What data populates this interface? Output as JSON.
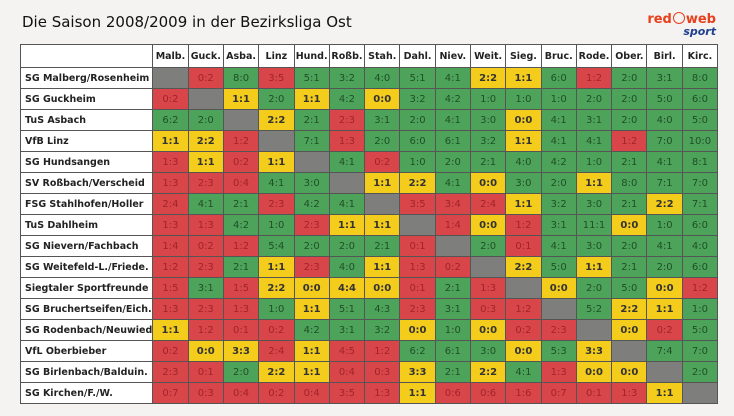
{
  "title": "Die Saison 2008/2009 in der Bezirksliga Ost",
  "logo": {
    "text_top": "red web",
    "text_bottom": "sport"
  },
  "colors": {
    "win": "#4ea35b",
    "draw": "#f4cc1c",
    "loss": "#d9464a",
    "self": "#7e7e7c"
  },
  "columns": [
    "Malb.",
    "Guck.",
    "Asba.",
    "Linz",
    "Hund.",
    "Roßb.",
    "Stah.",
    "Dahl.",
    "Niev.",
    "Weit.",
    "Sieg.",
    "Bruc.",
    "Rode.",
    "Ober.",
    "Birl.",
    "Kirc."
  ],
  "rows": [
    {
      "team": "SG Malberg/Rosenheim",
      "scores": [
        null,
        "0:2",
        "8:0",
        "3:5",
        "5:1",
        "3:2",
        "4:0",
        "5:1",
        "4:1",
        "2:2",
        "1:1",
        "6:0",
        "1:2",
        "2:0",
        "3:1",
        "8:0"
      ]
    },
    {
      "team": "SG Guckheim",
      "scores": [
        "0:2",
        null,
        "1:1",
        "2:0",
        "1:1",
        "4:2",
        "0:0",
        "3:2",
        "4:2",
        "1:0",
        "1:0",
        "1:0",
        "2:0",
        "2:0",
        "5:0",
        "6:0"
      ]
    },
    {
      "team": "TuS Asbach",
      "scores": [
        "6:2",
        "2:0",
        null,
        "2:2",
        "2:1",
        "2:3",
        "3:1",
        "2:0",
        "4:1",
        "3:0",
        "0:0",
        "4:1",
        "3:1",
        "2:0",
        "4:0",
        "5:0"
      ]
    },
    {
      "team": "VfB Linz",
      "scores": [
        "1:1",
        "2:2",
        "1:2",
        null,
        "7:1",
        "1:3",
        "2:0",
        "6:0",
        "6:1",
        "3:2",
        "1:1",
        "4:1",
        "4:1",
        "1:2",
        "7:0",
        "10:0"
      ]
    },
    {
      "team": "SG Hundsangen",
      "scores": [
        "1:3",
        "1:1",
        "0:2",
        "1:1",
        null,
        "4:1",
        "0:2",
        "1:0",
        "2:0",
        "2:1",
        "4:0",
        "4:2",
        "1:0",
        "2:1",
        "4:1",
        "8:1"
      ]
    },
    {
      "team": "SV Roßbach/Verscheid",
      "scores": [
        "1:3",
        "2:3",
        "0:4",
        "4:1",
        "3:0",
        null,
        "1:1",
        "2:2",
        "4:1",
        "0:0",
        "3:0",
        "2:0",
        "1:1",
        "8:0",
        "7:1",
        "7:0"
      ]
    },
    {
      "team": "FSG Stahlhofen/Holler",
      "scores": [
        "2:4",
        "4:1",
        "2:1",
        "2:3",
        "4:2",
        "4:1",
        null,
        "3:5",
        "3:4",
        "2:4",
        "1:1",
        "3:2",
        "3:0",
        "2:1",
        "2:2",
        "7:1"
      ]
    },
    {
      "team": "TuS Dahlheim",
      "scores": [
        "1:3",
        "1:3",
        "4:2",
        "1:0",
        "2:3",
        "1:1",
        "1:1",
        null,
        "1:4",
        "0:0",
        "1:2",
        "3:1",
        "11:1",
        "0:0",
        "1:0",
        "6:0"
      ]
    },
    {
      "team": "SG Nievern/Fachbach",
      "scores": [
        "1:4",
        "0:2",
        "1:2",
        "5:4",
        "2:0",
        "2:0",
        "2:1",
        "0:1",
        null,
        "2:0",
        "0:1",
        "4:1",
        "3:0",
        "2:0",
        "4:1",
        "4:0"
      ]
    },
    {
      "team": "SG Weitefeld-L./Friede.",
      "scores": [
        "1:2",
        "2:3",
        "2:1",
        "1:1",
        "2:3",
        "4:0",
        "1:1",
        "1:3",
        "0:2",
        null,
        "2:2",
        "5:0",
        "1:1",
        "2:1",
        "2:0",
        "6:0"
      ]
    },
    {
      "team": "Siegtaler Sportfreunde",
      "scores": [
        "1:5",
        "3:1",
        "1:5",
        "2:2",
        "0:0",
        "4:4",
        "0:0",
        "0:1",
        "2:1",
        "1:3",
        null,
        "0:0",
        "2:0",
        "5:0",
        "0:0",
        "1:2"
      ]
    },
    {
      "team": "SG Bruchertseifen/Eich.",
      "scores": [
        "1:3",
        "2:3",
        "1:3",
        "1:0",
        "1:1",
        "5:1",
        "4:3",
        "2:3",
        "3:1",
        "0:3",
        "1:2",
        null,
        "5:2",
        "2:2",
        "1:1",
        "1:0"
      ]
    },
    {
      "team": "SG Rodenbach/Neuwied",
      "scores": [
        "1:1",
        "1:2",
        "0:1",
        "0:2",
        "4:2",
        "3:1",
        "3:2",
        "0:0",
        "1:0",
        "0:0",
        "0:2",
        "2:3",
        null,
        "0:0",
        "0:2",
        "5:0"
      ]
    },
    {
      "team": "VfL Oberbieber",
      "scores": [
        "0:2",
        "0:0",
        "3:3",
        "2:4",
        "1:1",
        "4:5",
        "1:2",
        "6:2",
        "6:1",
        "3:0",
        "0:0",
        "5:3",
        "3:3",
        null,
        "7:4",
        "7:0"
      ]
    },
    {
      "team": "SG Birlenbach/Balduin.",
      "scores": [
        "2:3",
        "0:1",
        "2:0",
        "2:2",
        "1:1",
        "0:4",
        "0:3",
        "3:3",
        "2:1",
        "2:2",
        "4:1",
        "1:3",
        "0:0",
        "0:0",
        null,
        "2:0"
      ]
    },
    {
      "team": "SG Kirchen/F./W.",
      "scores": [
        "0:7",
        "0:3",
        "0:4",
        "0:2",
        "0:4",
        "3:5",
        "1:3",
        "1:1",
        "0:6",
        "0:6",
        "1:6",
        "0:7",
        "0:1",
        "1:3",
        "1:1",
        null
      ]
    }
  ]
}
